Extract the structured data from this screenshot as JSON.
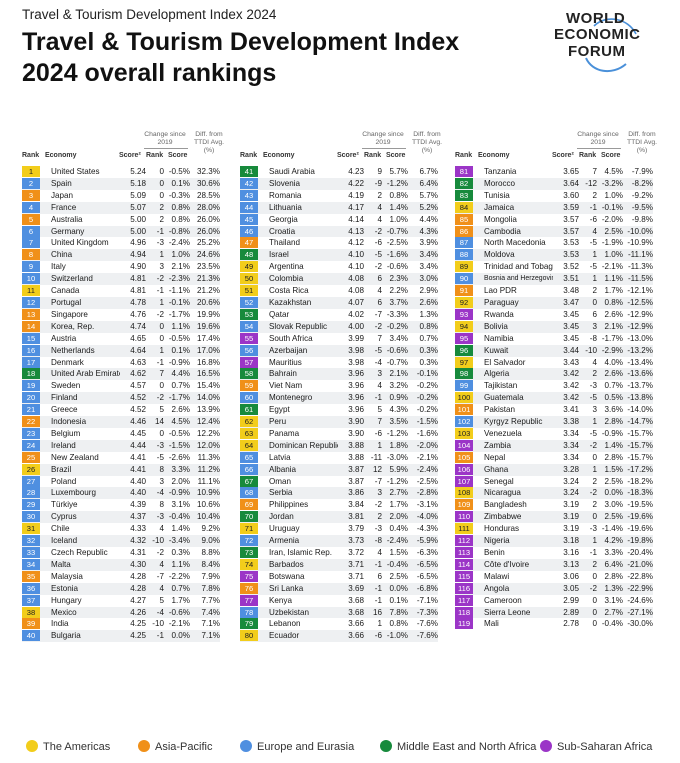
{
  "header": {
    "supertitle": "Travel & Tourism Development Index 2024",
    "title_line1": "Travel & Tourism Development Index",
    "title_line2": "2024 overall rankings"
  },
  "logo": {
    "line1": "WORLD",
    "line2": "ECONOMIC",
    "line3": "FORUM"
  },
  "columns_header": {
    "rank": "Rank",
    "economy": "Economy",
    "score": "Score²",
    "change_group": "Change since 2019",
    "change_rank": "Rank",
    "change_score": "Score",
    "diff_group": "Diff. from TTDI Avg. (%)"
  },
  "colors": {
    "americas": "#f2cd1b",
    "asia_pacific": "#f09019",
    "europe_eurasia": "#4f8fe0",
    "mena": "#178a3c",
    "subsaharan": "#9b35c7"
  },
  "legend": [
    {
      "label": "The Americas",
      "color": "#f2cd1b"
    },
    {
      "label": "Asia-Pacific",
      "color": "#f09019"
    },
    {
      "label": "Europe and Eurasia",
      "color": "#4f8fe0"
    },
    {
      "label": "Middle East and North Africa",
      "color": "#178a3c"
    },
    {
      "label": "Sub-Saharan Africa",
      "color": "#9b35c7"
    }
  ],
  "chart_data": {
    "type": "table",
    "title": "Travel & Tourism Development Index 2024 overall rankings",
    "columns": [
      "Rank",
      "Economy",
      "Score",
      "Change since 2019 Rank",
      "Change since 2019 Score",
      "Diff. from TTDI Avg. (%)"
    ],
    "rows": [
      [
        1,
        "United States",
        "5.24",
        "0",
        "-0.5%",
        "32.3%",
        "am"
      ],
      [
        2,
        "Spain",
        "5.18",
        "0",
        "0.1%",
        "30.6%",
        "ee"
      ],
      [
        3,
        "Japan",
        "5.09",
        "0",
        "-0.3%",
        "28.5%",
        "ap"
      ],
      [
        4,
        "France",
        "5.07",
        "2",
        "0.8%",
        "28.0%",
        "ee"
      ],
      [
        5,
        "Australia",
        "5.00",
        "2",
        "0.8%",
        "26.0%",
        "ap"
      ],
      [
        6,
        "Germany",
        "5.00",
        "-1",
        "-0.8%",
        "26.0%",
        "ee"
      ],
      [
        7,
        "United Kingdom",
        "4.96",
        "-3",
        "-2.4%",
        "25.2%",
        "ee"
      ],
      [
        8,
        "China",
        "4.94",
        "1",
        "1.0%",
        "24.6%",
        "ap"
      ],
      [
        9,
        "Italy",
        "4.90",
        "3",
        "2.1%",
        "23.5%",
        "ee"
      ],
      [
        10,
        "Switzerland",
        "4.81",
        "-2",
        "-2.3%",
        "21.3%",
        "ee"
      ],
      [
        11,
        "Canada",
        "4.81",
        "-1",
        "-1.1%",
        "21.2%",
        "am"
      ],
      [
        12,
        "Portugal",
        "4.78",
        "1",
        "-0.1%",
        "20.6%",
        "ee"
      ],
      [
        13,
        "Singapore",
        "4.76",
        "-2",
        "-1.7%",
        "19.9%",
        "ap"
      ],
      [
        14,
        "Korea, Rep.",
        "4.74",
        "0",
        "1.1%",
        "19.6%",
        "ap"
      ],
      [
        15,
        "Austria",
        "4.65",
        "0",
        "-0.5%",
        "17.4%",
        "ee"
      ],
      [
        16,
        "Netherlands",
        "4.64",
        "1",
        "0.1%",
        "17.0%",
        "ee"
      ],
      [
        17,
        "Denmark",
        "4.63",
        "-1",
        "-0.9%",
        "16.8%",
        "ee"
      ],
      [
        18,
        "United Arab Emirates",
        "4.62",
        "7",
        "4.4%",
        "16.5%",
        "me"
      ],
      [
        19,
        "Sweden",
        "4.57",
        "0",
        "0.7%",
        "15.4%",
        "ee"
      ],
      [
        20,
        "Finland",
        "4.52",
        "-2",
        "-1.7%",
        "14.0%",
        "ee"
      ],
      [
        21,
        "Greece",
        "4.52",
        "5",
        "2.6%",
        "13.9%",
        "ee"
      ],
      [
        22,
        "Indonesia",
        "4.46",
        "14",
        "4.5%",
        "12.4%",
        "ap"
      ],
      [
        23,
        "Belgium",
        "4.45",
        "0",
        "-0.5%",
        "12.2%",
        "ee"
      ],
      [
        24,
        "Ireland",
        "4.44",
        "-3",
        "-1.5%",
        "12.0%",
        "ee"
      ],
      [
        25,
        "New Zealand",
        "4.41",
        "-5",
        "-2.6%",
        "11.3%",
        "ap"
      ],
      [
        26,
        "Brazil",
        "4.41",
        "8",
        "3.3%",
        "11.2%",
        "am"
      ],
      [
        27,
        "Poland",
        "4.40",
        "3",
        "2.0%",
        "11.1%",
        "ee"
      ],
      [
        28,
        "Luxembourg",
        "4.40",
        "-4",
        "-0.9%",
        "10.9%",
        "ee"
      ],
      [
        29,
        "Türkiye",
        "4.39",
        "8",
        "3.1%",
        "10.6%",
        "ee"
      ],
      [
        30,
        "Cyprus",
        "4.37",
        "-3",
        "-0.4%",
        "10.4%",
        "ee"
      ],
      [
        31,
        "Chile",
        "4.33",
        "4",
        "1.4%",
        "9.2%",
        "am"
      ],
      [
        32,
        "Iceland",
        "4.32",
        "-10",
        "-3.4%",
        "9.0%",
        "ee"
      ],
      [
        33,
        "Czech Republic",
        "4.31",
        "-2",
        "0.3%",
        "8.8%",
        "ee"
      ],
      [
        34,
        "Malta",
        "4.30",
        "4",
        "1.1%",
        "8.4%",
        "ee"
      ],
      [
        35,
        "Malaysia",
        "4.28",
        "-7",
        "-2.2%",
        "7.9%",
        "ap"
      ],
      [
        36,
        "Estonia",
        "4.28",
        "4",
        "0.7%",
        "7.8%",
        "ee"
      ],
      [
        37,
        "Hungary",
        "4.27",
        "5",
        "1.7%",
        "7.7%",
        "ee"
      ],
      [
        38,
        "Mexico",
        "4.26",
        "-4",
        "-0.6%",
        "7.4%",
        "am"
      ],
      [
        39,
        "India",
        "4.25",
        "-10",
        "-2.1%",
        "7.1%",
        "ap"
      ],
      [
        40,
        "Bulgaria",
        "4.25",
        "-1",
        "0.0%",
        "7.1%",
        "ee"
      ],
      [
        41,
        "Saudi Arabia",
        "4.23",
        "9",
        "5.7%",
        "6.7%",
        "me"
      ],
      [
        42,
        "Slovenia",
        "4.22",
        "-9",
        "-1.2%",
        "6.4%",
        "ee"
      ],
      [
        43,
        "Romania",
        "4.19",
        "2",
        "0.8%",
        "5.7%",
        "ee"
      ],
      [
        44,
        "Lithuania",
        "4.17",
        "4",
        "1.4%",
        "5.2%",
        "ee"
      ],
      [
        45,
        "Georgia",
        "4.14",
        "4",
        "1.0%",
        "4.4%",
        "ee"
      ],
      [
        46,
        "Croatia",
        "4.13",
        "-2",
        "-0.7%",
        "4.3%",
        "ee"
      ],
      [
        47,
        "Thailand",
        "4.12",
        "-6",
        "-2.5%",
        "3.9%",
        "ap"
      ],
      [
        48,
        "Israel",
        "4.10",
        "-5",
        "-1.6%",
        "3.4%",
        "me"
      ],
      [
        49,
        "Argentina",
        "4.10",
        "-2",
        "-0.6%",
        "3.4%",
        "am"
      ],
      [
        50,
        "Colombia",
        "4.08",
        "6",
        "2.3%",
        "3.0%",
        "am"
      ],
      [
        51,
        "Costa Rica",
        "4.08",
        "4",
        "2.2%",
        "2.9%",
        "am"
      ],
      [
        52,
        "Kazakhstan",
        "4.07",
        "6",
        "3.7%",
        "2.6%",
        "ee"
      ],
      [
        53,
        "Qatar",
        "4.02",
        "-7",
        "-3.3%",
        "1.3%",
        "me"
      ],
      [
        54,
        "Slovak Republic",
        "4.00",
        "-2",
        "-0.2%",
        "0.8%",
        "ee"
      ],
      [
        55,
        "South Africa",
        "3.99",
        "7",
        "3.4%",
        "0.7%",
        "ss"
      ],
      [
        56,
        "Azerbaijan",
        "3.98",
        "-5",
        "-0.6%",
        "0.3%",
        "ee"
      ],
      [
        57,
        "Mauritius",
        "3.98",
        "-4",
        "-0.7%",
        "0.3%",
        "ss"
      ],
      [
        58,
        "Bahrain",
        "3.96",
        "3",
        "2.1%",
        "-0.1%",
        "me"
      ],
      [
        59,
        "Viet Nam",
        "3.96",
        "4",
        "3.2%",
        "-0.2%",
        "ap"
      ],
      [
        60,
        "Montenegro",
        "3.96",
        "-1",
        "0.9%",
        "-0.2%",
        "ee"
      ],
      [
        61,
        "Egypt",
        "3.96",
        "5",
        "4.3%",
        "-0.2%",
        "me"
      ],
      [
        62,
        "Peru",
        "3.90",
        "7",
        "3.5%",
        "-1.5%",
        "am"
      ],
      [
        63,
        "Panama",
        "3.90",
        "-6",
        "-1.2%",
        "-1.6%",
        "am"
      ],
      [
        64,
        "Dominican Republic",
        "3.88",
        "1",
        "1.8%",
        "-2.0%",
        "am"
      ],
      [
        65,
        "Latvia",
        "3.88",
        "-11",
        "-3.0%",
        "-2.1%",
        "ee"
      ],
      [
        66,
        "Albania",
        "3.87",
        "12",
        "5.9%",
        "-2.4%",
        "ee"
      ],
      [
        67,
        "Oman",
        "3.87",
        "-7",
        "-1.2%",
        "-2.5%",
        "me"
      ],
      [
        68,
        "Serbia",
        "3.86",
        "3",
        "2.7%",
        "-2.8%",
        "ee"
      ],
      [
        69,
        "Philippines",
        "3.84",
        "-2",
        "1.7%",
        "-3.1%",
        "ap"
      ],
      [
        70,
        "Jordan",
        "3.81",
        "2",
        "2.0%",
        "-4.0%",
        "me"
      ],
      [
        71,
        "Uruguay",
        "3.79",
        "-3",
        "0.4%",
        "-4.3%",
        "am"
      ],
      [
        72,
        "Armenia",
        "3.73",
        "-8",
        "-2.4%",
        "-5.9%",
        "ee"
      ],
      [
        73,
        "Iran, Islamic Rep.",
        "3.72",
        "4",
        "1.5%",
        "-6.3%",
        "me"
      ],
      [
        74,
        "Barbados",
        "3.71",
        "-1",
        "-0.4%",
        "-6.5%",
        "am"
      ],
      [
        75,
        "Botswana",
        "3.71",
        "6",
        "2.5%",
        "-6.5%",
        "ss"
      ],
      [
        76,
        "Sri Lanka",
        "3.69",
        "-1",
        "0.0%",
        "-6.8%",
        "ap"
      ],
      [
        77,
        "Kenya",
        "3.68",
        "-1",
        "0.1%",
        "-7.1%",
        "ss"
      ],
      [
        78,
        "Uzbekistan",
        "3.68",
        "16",
        "7.8%",
        "-7.3%",
        "ee"
      ],
      [
        79,
        "Lebanon",
        "3.66",
        "1",
        "0.8%",
        "-7.6%",
        "me"
      ],
      [
        80,
        "Ecuador",
        "3.66",
        "-6",
        "-1.0%",
        "-7.6%",
        "am"
      ],
      [
        81,
        "Tanzania",
        "3.65",
        "7",
        "4.5%",
        "-7.9%",
        "ss"
      ],
      [
        82,
        "Morocco",
        "3.64",
        "-12",
        "-3.2%",
        "-8.2%",
        "me"
      ],
      [
        83,
        "Tunisia",
        "3.60",
        "2",
        "1.0%",
        "-9.2%",
        "me"
      ],
      [
        84,
        "Jamaica",
        "3.59",
        "-1",
        "-0.1%",
        "-9.5%",
        "am"
      ],
      [
        85,
        "Mongolia",
        "3.57",
        "-6",
        "-2.0%",
        "-9.8%",
        "ap"
      ],
      [
        86,
        "Cambodia",
        "3.57",
        "4",
        "2.5%",
        "-10.0%",
        "ap"
      ],
      [
        87,
        "North Macedonia",
        "3.53",
        "-5",
        "-1.9%",
        "-10.9%",
        "ee"
      ],
      [
        88,
        "Moldova",
        "3.53",
        "1",
        "1.0%",
        "-11.1%",
        "ee"
      ],
      [
        89,
        "Trinidad and Tobago",
        "3.52",
        "-5",
        "-2.1%",
        "-11.3%",
        "am"
      ],
      [
        90,
        "Bosnia and Herzegovina",
        "3.51",
        "1",
        "1.1%",
        "-11.5%",
        "ee"
      ],
      [
        91,
        "Lao PDR",
        "3.48",
        "2",
        "1.7%",
        "-12.1%",
        "ap"
      ],
      [
        92,
        "Paraguay",
        "3.47",
        "0",
        "0.8%",
        "-12.5%",
        "am"
      ],
      [
        93,
        "Rwanda",
        "3.45",
        "6",
        "2.6%",
        "-12.9%",
        "ss"
      ],
      [
        94,
        "Bolivia",
        "3.45",
        "3",
        "2.1%",
        "-12.9%",
        "am"
      ],
      [
        95,
        "Namibia",
        "3.45",
        "-8",
        "-1.7%",
        "-13.0%",
        "ss"
      ],
      [
        96,
        "Kuwait",
        "3.44",
        "-10",
        "-2.9%",
        "-13.2%",
        "me"
      ],
      [
        97,
        "El Salvador",
        "3.43",
        "4",
        "4.0%",
        "-13.4%",
        "am"
      ],
      [
        98,
        "Algeria",
        "3.42",
        "2",
        "2.6%",
        "-13.6%",
        "me"
      ],
      [
        99,
        "Tajikistan",
        "3.42",
        "-3",
        "0.7%",
        "-13.7%",
        "ee"
      ],
      [
        100,
        "Guatemala",
        "3.42",
        "-5",
        "0.5%",
        "-13.8%",
        "am"
      ],
      [
        101,
        "Pakistan",
        "3.41",
        "3",
        "3.6%",
        "-14.0%",
        "ap"
      ],
      [
        102,
        "Kyrgyz Republic",
        "3.38",
        "1",
        "2.8%",
        "-14.7%",
        "ee"
      ],
      [
        103,
        "Venezuela",
        "3.34",
        "-5",
        "-0.9%",
        "-15.7%",
        "am"
      ],
      [
        104,
        "Zambia",
        "3.34",
        "-2",
        "1.4%",
        "-15.7%",
        "ss"
      ],
      [
        105,
        "Nepal",
        "3.34",
        "0",
        "2.8%",
        "-15.7%",
        "ap"
      ],
      [
        106,
        "Ghana",
        "3.28",
        "1",
        "1.5%",
        "-17.2%",
        "ss"
      ],
      [
        107,
        "Senegal",
        "3.24",
        "2",
        "2.5%",
        "-18.2%",
        "ss"
      ],
      [
        108,
        "Nicaragua",
        "3.24",
        "-2",
        "0.0%",
        "-18.3%",
        "am"
      ],
      [
        109,
        "Bangladesh",
        "3.19",
        "2",
        "3.0%",
        "-19.5%",
        "ap"
      ],
      [
        110,
        "Zimbabwe",
        "3.19",
        "0",
        "2.5%",
        "-19.6%",
        "ss"
      ],
      [
        111,
        "Honduras",
        "3.19",
        "-3",
        "-1.4%",
        "-19.6%",
        "am"
      ],
      [
        112,
        "Nigeria",
        "3.18",
        "1",
        "4.2%",
        "-19.8%",
        "ss"
      ],
      [
        113,
        "Benin",
        "3.16",
        "-1",
        "3.3%",
        "-20.4%",
        "ss"
      ],
      [
        114,
        "Côte d'Ivoire",
        "3.13",
        "2",
        "6.4%",
        "-21.0%",
        "ss"
      ],
      [
        115,
        "Malawi",
        "3.06",
        "0",
        "2.8%",
        "-22.8%",
        "ss"
      ],
      [
        116,
        "Angola",
        "3.05",
        "-2",
        "1.3%",
        "-22.9%",
        "ss"
      ],
      [
        117,
        "Cameroon",
        "2.99",
        "0",
        "3.1%",
        "-24.6%",
        "ss"
      ],
      [
        118,
        "Sierra Leone",
        "2.89",
        "0",
        "2.7%",
        "-27.1%",
        "ss"
      ],
      [
        119,
        "Mali",
        "2.78",
        "0",
        "-0.4%",
        "-30.0%",
        "ss"
      ]
    ]
  }
}
